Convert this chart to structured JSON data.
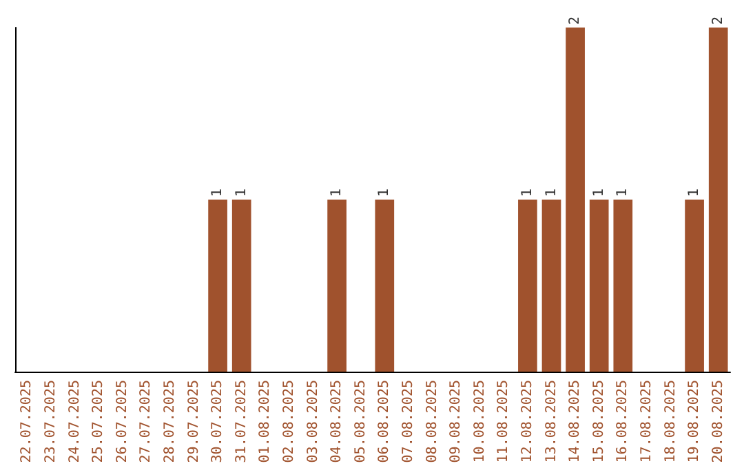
{
  "chart_data": {
    "type": "bar",
    "categories": [
      "22.07.2025",
      "23.07.2025",
      "24.07.2025",
      "25.07.2025",
      "26.07.2025",
      "27.07.2025",
      "28.07.2025",
      "29.07.2025",
      "30.07.2025",
      "31.07.2025",
      "01.08.2025",
      "02.08.2025",
      "03.08.2025",
      "04.08.2025",
      "05.08.2025",
      "06.08.2025",
      "07.08.2025",
      "08.08.2025",
      "09.08.2025",
      "10.08.2025",
      "11.08.2025",
      "12.08.2025",
      "13.08.2025",
      "14.08.2025",
      "15.08.2025",
      "16.08.2025",
      "17.08.2025",
      "18.08.2025",
      "19.08.2025",
      "20.08.2025"
    ],
    "values": [
      0,
      0,
      0,
      0,
      0,
      0,
      0,
      0,
      1,
      1,
      0,
      0,
      0,
      1,
      0,
      1,
      0,
      0,
      0,
      0,
      0,
      1,
      1,
      2,
      1,
      1,
      0,
      0,
      1,
      2
    ],
    "value_labels": [
      null,
      null,
      null,
      null,
      null,
      null,
      null,
      null,
      "1",
      "1",
      null,
      null,
      null,
      "1",
      null,
      "1",
      null,
      null,
      null,
      null,
      null,
      "1",
      "1",
      "2",
      "1",
      "1",
      null,
      null,
      "1",
      "2"
    ],
    "color": "#a0522d",
    "ylim": [
      0,
      2
    ],
    "tick_labels": "x"
  }
}
